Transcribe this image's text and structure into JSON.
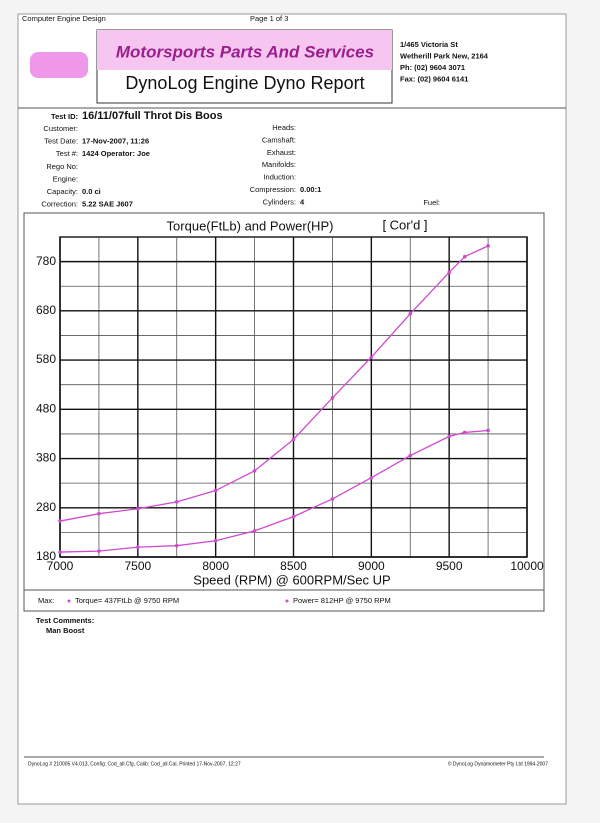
{
  "header": {
    "software": "Computer Engine Design",
    "page": "Page 1 of 3",
    "company": "Motorsports Parts And Services",
    "report": "DynoLog Engine Dyno Report",
    "address": [
      "1/465 Victoria St",
      "Wetherill Park New, 2164",
      "Ph: (02) 9604 3071",
      "Fax: (02) 9604 6141"
    ]
  },
  "test": {
    "label": "Test ID:",
    "value": "16/11/07full Throt Dis Boos"
  },
  "left_fields": [
    {
      "label": "Customer:"
    },
    {
      "label": "Test Date:",
      "value": "17-Nov-2007, 11:26"
    },
    {
      "label": "Test #:",
      "value": "1424 Operator: Joe"
    },
    {
      "label": "Rego No:"
    },
    {
      "label": "Engine:"
    },
    {
      "label": "Capacity:",
      "value": "0.0 ci"
    },
    {
      "label": "Correction:",
      "value": "5.22 SAE J607"
    }
  ],
  "right_fields": [
    {
      "label": "Heads:"
    },
    {
      "label": "Camshaft:"
    },
    {
      "label": "Exhaust:"
    },
    {
      "label": "Manifolds:"
    },
    {
      "label": "Induction:"
    },
    {
      "label": "Compression:",
      "value": "0.00:1"
    },
    {
      "label": "Cylinders:",
      "value": "4"
    }
  ],
  "fuel": {
    "label": "Fuel:"
  },
  "chart_data": {
    "type": "line",
    "title": "Torque(FtLb) and Power(HP)",
    "subtitle": "[ Cor'd ]",
    "x_label": "Speed (RPM) @ 600RPM/Sec UP",
    "x": [
      7000,
      7250,
      7500,
      7750,
      8000,
      8250,
      8500,
      8750,
      9000,
      9250,
      9500,
      9600,
      9750
    ],
    "series": [
      {
        "color": "#d04ad0",
        "values": [
          253,
          268,
          278,
          292,
          315,
          355,
          419,
          503,
          586,
          674,
          758,
          790,
          812
        ]
      },
      {
        "color": "#d04ad0",
        "values": [
          190,
          192,
          200,
          203,
          213,
          233,
          262,
          298,
          341,
          386,
          425,
          433,
          437
        ]
      }
    ],
    "xlim": [
      7000,
      10000
    ],
    "xticks": [
      7000,
      7500,
      8000,
      8500,
      9000,
      9500,
      10000
    ],
    "ylim": [
      180,
      830
    ],
    "yticks": [
      180,
      280,
      380,
      480,
      580,
      680,
      780
    ],
    "grid": true
  },
  "max": {
    "label": "Max:",
    "torque": "Torque= 437FtLb @ 9750 RPM",
    "power": "Power= 812HP @ 9750 RPM"
  },
  "comments": {
    "label": "Test Comments:",
    "text": "Man Boost"
  },
  "footer": {
    "left": "DynoLog # 210005 V4.013, Config: Cod_all.Cfg, Calib: Cod_all.Cal, Printed 17-Nov-2007, 12:27",
    "right": "© DynoLog Dynamometer Pty Ltd 1994-2007"
  }
}
